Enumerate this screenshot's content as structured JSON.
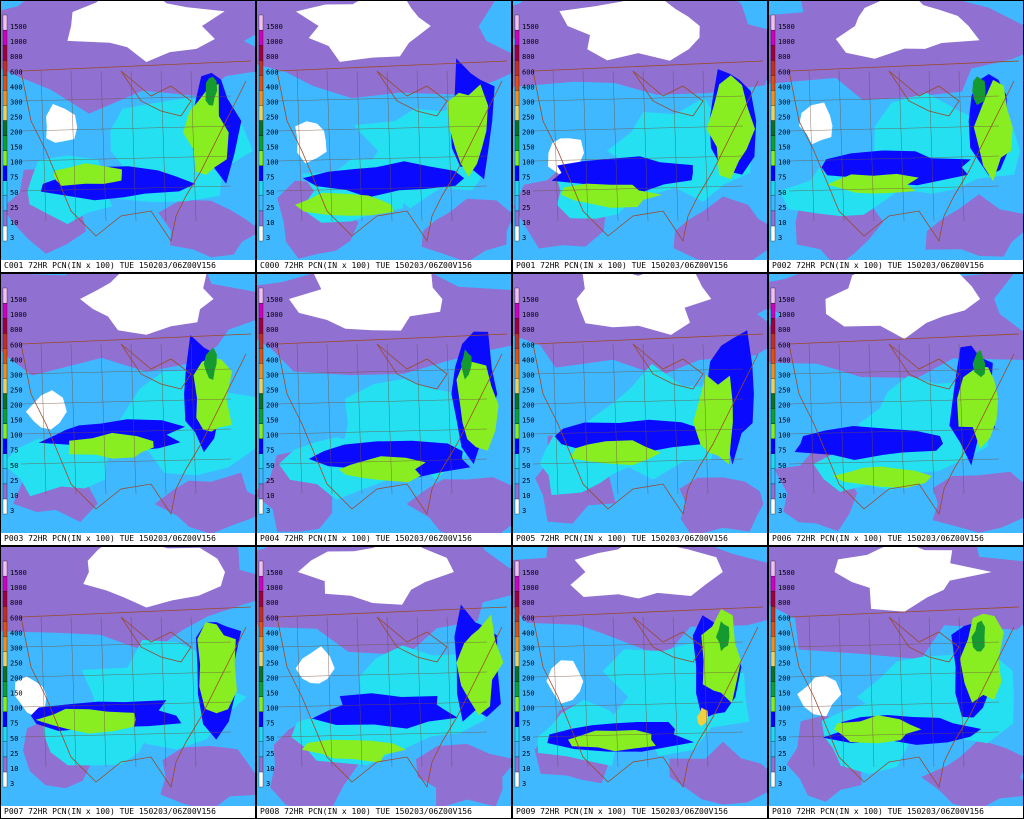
{
  "caption_suffix": " 72HR PCN(IN x 100) TUE 150203/06Z00V156",
  "legend_levels": [
    "3",
    "10",
    "25",
    "50",
    "75",
    "100",
    "150",
    "200",
    "250",
    "300",
    "400",
    "600",
    "800",
    "1000",
    "1500"
  ],
  "legend_colors": [
    "#ffffff",
    "#9070d0",
    "#3fb8ff",
    "#22d8f0",
    "#0000ff",
    "#88ee22",
    "#10a030",
    "#107020",
    "#f0d060",
    "#f09020",
    "#e05010",
    "#c03020",
    "#a00040",
    "#d000c0",
    "#f0c0f0"
  ],
  "palette": {
    "white": "#ffffff",
    "purple": "#9070d0",
    "light_blue": "#40b8ff",
    "cyan": "#25e0f0",
    "blue": "#0a0aff",
    "green": "#88ee22",
    "dark_green": "#149a30",
    "yellow": "#f0d040",
    "border": "#9a4a2a"
  },
  "panels": [
    {
      "id": "C001",
      "caption_id": "C001"
    },
    {
      "id": "C000",
      "caption_id": "C000"
    },
    {
      "id": "P001",
      "caption_id": "P001"
    },
    {
      "id": "P002",
      "caption_id": "P002"
    },
    {
      "id": "P003",
      "caption_id": "P003"
    },
    {
      "id": "P004",
      "caption_id": "P004"
    },
    {
      "id": "P005",
      "caption_id": "P005"
    },
    {
      "id": "P006",
      "caption_id": "P006"
    },
    {
      "id": "P007",
      "caption_id": "P007"
    },
    {
      "id": "P008",
      "caption_id": "P008"
    },
    {
      "id": "P009",
      "caption_id": "P009"
    },
    {
      "id": "P010",
      "caption_id": "P010"
    }
  ]
}
